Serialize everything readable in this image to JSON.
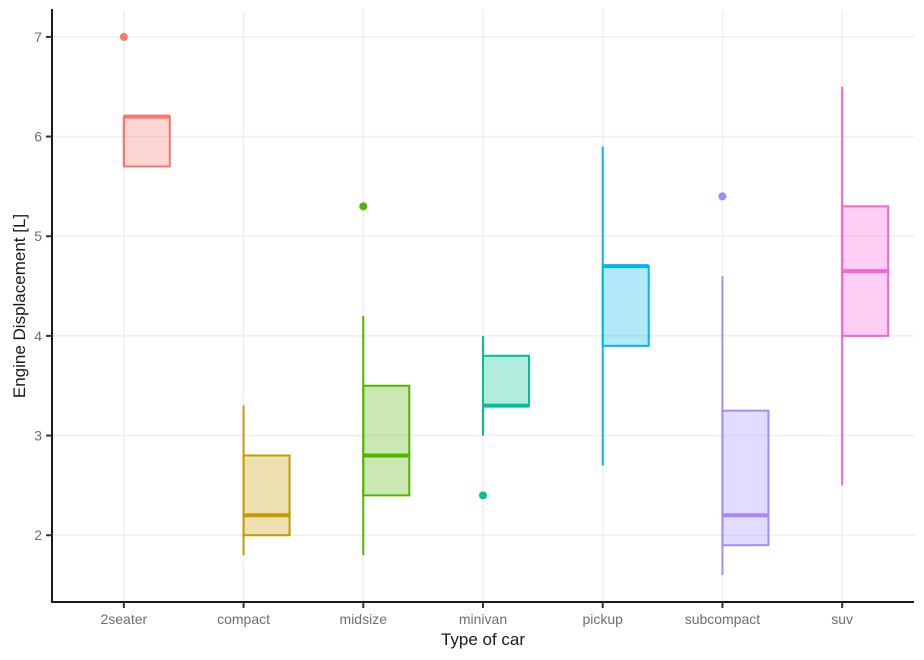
{
  "chart_data": {
    "type": "boxplot",
    "title": "",
    "xlabel": "Type of car",
    "ylabel": "Engine Displacement [L]",
    "categories": [
      "2seater",
      "compact",
      "midsize",
      "minivan",
      "pickup",
      "subcompact",
      "suv"
    ],
    "series": [
      {
        "category": "2seater",
        "color": "#F8766D",
        "whisker_low": 5.7,
        "q1": 5.7,
        "median": 6.2,
        "q3": 6.2,
        "whisker_high": 6.2,
        "outliers": [
          7.0
        ]
      },
      {
        "category": "compact",
        "color": "#C49A00",
        "whisker_low": 1.8,
        "q1": 2.0,
        "median": 2.2,
        "q3": 2.8,
        "whisker_high": 3.3,
        "outliers": []
      },
      {
        "category": "midsize",
        "color": "#53B400",
        "whisker_low": 1.8,
        "q1": 2.4,
        "median": 2.8,
        "q3": 3.5,
        "whisker_high": 4.2,
        "outliers": [
          5.3
        ]
      },
      {
        "category": "minivan",
        "color": "#00C094",
        "whisker_low": 3.0,
        "q1": 3.3,
        "median": 3.3,
        "q3": 3.8,
        "whisker_high": 4.0,
        "outliers": [
          2.4
        ]
      },
      {
        "category": "pickup",
        "color": "#00B6EB",
        "whisker_low": 2.7,
        "q1": 3.9,
        "median": 4.7,
        "q3": 4.7,
        "whisker_high": 5.9,
        "outliers": []
      },
      {
        "category": "subcompact",
        "color": "#A58AFF",
        "whisker_low": 1.6,
        "q1": 1.9,
        "median": 2.2,
        "q3": 3.25,
        "whisker_high": 4.6,
        "outliers": [
          5.4
        ]
      },
      {
        "category": "suv",
        "color": "#FB61D7",
        "whisker_low": 2.5,
        "q1": 4.0,
        "median": 4.65,
        "q3": 5.3,
        "whisker_high": 6.5,
        "outliers": []
      }
    ],
    "y_ticks": [
      2,
      3,
      4,
      5,
      6,
      7
    ],
    "ylim": [
      1.33,
      7.27
    ],
    "grid": true,
    "legend": "none",
    "fill_alpha": 0.3,
    "style": {
      "grid_color": "#EFEFEF",
      "axis_line_color": "#1a1a1a",
      "tick_color": "#333333",
      "axis_text_color": "#6e6e6e",
      "axis_title_color": "#1a1a1a",
      "background": "#ffffff"
    }
  }
}
